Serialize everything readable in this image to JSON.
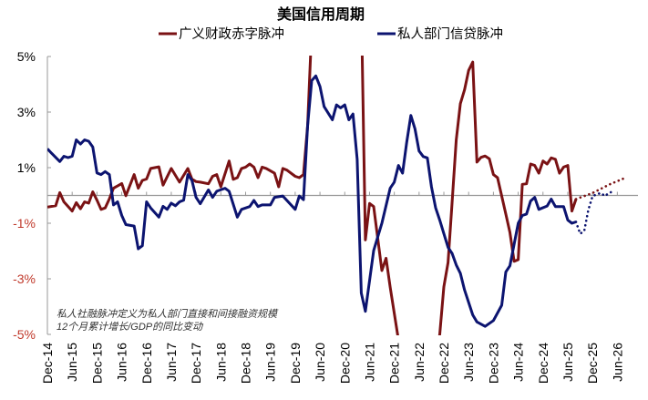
{
  "chart_data": {
    "type": "line",
    "title": "美国信用周期",
    "legend": {
      "placement": "top-center"
    },
    "xlabel": "",
    "ylabel": "",
    "xlim": [
      "2014-12",
      "2026-11"
    ],
    "ylim": [
      -5,
      5
    ],
    "y_ticks": [
      5,
      3,
      1,
      -1,
      -3,
      -5
    ],
    "y_tick_labels": [
      "5%",
      "3%",
      "1%",
      "-1%",
      "-3%",
      "-5%"
    ],
    "y_tick_colors": {
      "positive": "#000000",
      "negative": "#c0392b"
    },
    "x_tick_labels": [
      "Dec-14",
      "Jun-15",
      "Dec-15",
      "Jun-16",
      "Dec-16",
      "Jun-17",
      "Dec-17",
      "Jun-18",
      "Dec-18",
      "Jun-19",
      "Dec-19",
      "Jun-20",
      "Dec-20",
      "Jun-21",
      "Dec-21",
      "Jun-22",
      "Dec-22",
      "Jun-23",
      "Dec-23",
      "Jun-24",
      "Dec-24",
      "Jun-25",
      "Dec-25",
      "Jun-26"
    ],
    "x_ticks": [
      "2014-12",
      "2015-06",
      "2015-12",
      "2016-06",
      "2016-12",
      "2017-06",
      "2017-12",
      "2018-06",
      "2018-12",
      "2019-06",
      "2019-12",
      "2020-06",
      "2020-12",
      "2021-06",
      "2021-12",
      "2022-06",
      "2022-12",
      "2023-06",
      "2023-12",
      "2024-06",
      "2024-12",
      "2025-06",
      "2025-12",
      "2026-06"
    ],
    "grid": false,
    "zero_line": true,
    "annotation": [
      "私人社融脉冲定义为私人部门直接和间接融资规模",
      "12个月累计增长/GDP的同比变动"
    ],
    "series": [
      {
        "name": "广义财政赤字脉冲",
        "color": "#7a1214",
        "points": [
          [
            "2014-12",
            -0.42
          ],
          [
            "2015-02",
            -0.37
          ],
          [
            "2015-03",
            0.1
          ],
          [
            "2015-04",
            -0.23
          ],
          [
            "2015-06",
            -0.56
          ],
          [
            "2015-07",
            -0.26
          ],
          [
            "2015-08",
            -0.48
          ],
          [
            "2015-09",
            -0.23
          ],
          [
            "2015-10",
            -0.28
          ],
          [
            "2015-11",
            0.13
          ],
          [
            "2015-12",
            -0.17
          ],
          [
            "2016-01",
            -0.5
          ],
          [
            "2016-02",
            -0.45
          ],
          [
            "2016-03",
            -0.12
          ],
          [
            "2016-04",
            0.26
          ],
          [
            "2016-06",
            0.43
          ],
          [
            "2016-07",
            -0.01
          ],
          [
            "2016-09",
            0.75
          ],
          [
            "2016-10",
            0.26
          ],
          [
            "2016-11",
            0.54
          ],
          [
            "2016-12",
            0.59
          ],
          [
            "2017-01",
            0.97
          ],
          [
            "2017-03",
            1.03
          ],
          [
            "2017-04",
            0.37
          ],
          [
            "2017-06",
            0.97
          ],
          [
            "2017-08",
            0.48
          ],
          [
            "2017-10",
            0.97
          ],
          [
            "2017-11",
            0.59
          ],
          [
            "2017-12",
            0.5
          ],
          [
            "2018-01",
            0.48
          ],
          [
            "2018-03",
            0.42
          ],
          [
            "2018-04",
            0.69
          ],
          [
            "2018-05",
            0.75
          ],
          [
            "2018-06",
            0.31
          ],
          [
            "2018-08",
            1.24
          ],
          [
            "2018-09",
            0.58
          ],
          [
            "2018-10",
            0.64
          ],
          [
            "2018-11",
            0.97
          ],
          [
            "2018-12",
            1.02
          ],
          [
            "2019-01",
            1.13
          ],
          [
            "2019-02",
            1.02
          ],
          [
            "2019-03",
            0.64
          ],
          [
            "2019-04",
            1.02
          ],
          [
            "2019-05",
            0.97
          ],
          [
            "2019-07",
            0.8
          ],
          [
            "2019-08",
            0.31
          ],
          [
            "2019-09",
            0.97
          ],
          [
            "2019-10",
            0.91
          ],
          [
            "2019-12",
            0.69
          ],
          [
            "2020-01",
            0.64
          ],
          [
            "2020-02",
            0.75
          ],
          [
            "2020-03",
            2.5
          ],
          [
            "2020-04",
            6.0
          ],
          [
            "2021-03",
            6.5
          ],
          [
            "2021-04",
            7.0
          ],
          [
            "2021-05",
            -1.6
          ],
          [
            "2021-06",
            -0.29
          ],
          [
            "2021-07",
            -0.4
          ],
          [
            "2021-09",
            -2.7
          ],
          [
            "2021-10",
            -2.26
          ],
          [
            "2021-11",
            -3.3
          ],
          [
            "2022-01",
            -5.2
          ],
          [
            "2022-02",
            -6.5
          ],
          [
            "2022-09",
            -6.5
          ],
          [
            "2022-11",
            -5.0
          ],
          [
            "2022-12",
            -3.29
          ],
          [
            "2023-01",
            -2.42
          ],
          [
            "2023-02",
            -0.23
          ],
          [
            "2023-03",
            2.0
          ],
          [
            "2023-04",
            3.3
          ],
          [
            "2023-05",
            3.8
          ],
          [
            "2023-06",
            4.5
          ],
          [
            "2023-07",
            4.8
          ],
          [
            "2023-08",
            1.2
          ],
          [
            "2023-09",
            1.37
          ],
          [
            "2023-10",
            1.42
          ],
          [
            "2023-11",
            1.32
          ],
          [
            "2023-12",
            0.75
          ],
          [
            "2024-01",
            0.64
          ],
          [
            "2024-03",
            -0.67
          ],
          [
            "2024-04",
            -1.33
          ],
          [
            "2024-05",
            -2.37
          ],
          [
            "2024-06",
            -2.31
          ],
          [
            "2024-07",
            0.4
          ],
          [
            "2024-08",
            0.42
          ],
          [
            "2024-09",
            1.13
          ],
          [
            "2024-10",
            1.08
          ],
          [
            "2024-11",
            0.8
          ],
          [
            "2024-12",
            1.24
          ],
          [
            "2025-01",
            1.13
          ],
          [
            "2025-02",
            1.35
          ],
          [
            "2025-03",
            1.3
          ],
          [
            "2025-04",
            0.8
          ],
          [
            "2025-05",
            1.02
          ],
          [
            "2025-06",
            1.08
          ],
          [
            "2025-07",
            -0.56
          ],
          [
            "2025-08",
            -0.13
          ]
        ],
        "forecast": [
          [
            "2025-08",
            -0.13
          ],
          [
            "2025-12",
            0.09
          ],
          [
            "2026-04",
            0.39
          ],
          [
            "2026-08",
            0.64
          ]
        ]
      },
      {
        "name": "私人部门信贷脉冲",
        "color": "#0c1470",
        "points": [
          [
            "2014-12",
            1.68
          ],
          [
            "2015-01",
            1.52
          ],
          [
            "2015-03",
            1.22
          ],
          [
            "2015-04",
            1.41
          ],
          [
            "2015-05",
            1.36
          ],
          [
            "2015-06",
            1.41
          ],
          [
            "2015-07",
            2.0
          ],
          [
            "2015-08",
            1.85
          ],
          [
            "2015-09",
            2.0
          ],
          [
            "2015-10",
            1.95
          ],
          [
            "2015-11",
            1.74
          ],
          [
            "2015-12",
            0.81
          ],
          [
            "2016-01",
            0.75
          ],
          [
            "2016-02",
            0.86
          ],
          [
            "2016-03",
            0.75
          ],
          [
            "2016-04",
            -0.34
          ],
          [
            "2016-05",
            -0.23
          ],
          [
            "2016-06",
            -0.72
          ],
          [
            "2016-07",
            -1.05
          ],
          [
            "2016-09",
            -1.1
          ],
          [
            "2016-10",
            -1.92
          ],
          [
            "2016-11",
            -1.81
          ],
          [
            "2016-12",
            -0.23
          ],
          [
            "2017-01",
            -0.45
          ],
          [
            "2017-03",
            -0.78
          ],
          [
            "2017-04",
            -0.39
          ],
          [
            "2017-05",
            -0.5
          ],
          [
            "2017-06",
            -0.28
          ],
          [
            "2017-07",
            -0.37
          ],
          [
            "2017-08",
            -0.23
          ],
          [
            "2017-09",
            -0.17
          ],
          [
            "2017-10",
            0.75
          ],
          [
            "2017-11",
            0.54
          ],
          [
            "2017-12",
            -0.07
          ],
          [
            "2018-01",
            -0.3
          ],
          [
            "2018-03",
            0.2
          ],
          [
            "2018-04",
            -0.07
          ],
          [
            "2018-05",
            0.15
          ],
          [
            "2018-07",
            0.26
          ],
          [
            "2018-08",
            0.15
          ],
          [
            "2018-10",
            -0.78
          ],
          [
            "2018-11",
            -0.5
          ],
          [
            "2019-01",
            -0.4
          ],
          [
            "2019-02",
            -0.18
          ],
          [
            "2019-03",
            -0.4
          ],
          [
            "2019-04",
            -0.34
          ],
          [
            "2019-06",
            -0.34
          ],
          [
            "2019-07",
            -0.07
          ],
          [
            "2019-09",
            -0.02
          ],
          [
            "2019-12",
            -0.5
          ],
          [
            "2020-01",
            -0.02
          ],
          [
            "2020-02",
            -0.15
          ],
          [
            "2020-03",
            2.5
          ],
          [
            "2020-04",
            4.13
          ],
          [
            "2020-05",
            4.3
          ],
          [
            "2020-06",
            3.92
          ],
          [
            "2020-07",
            3.2
          ],
          [
            "2020-09",
            2.72
          ],
          [
            "2020-10",
            3.26
          ],
          [
            "2020-11",
            3.15
          ],
          [
            "2020-12",
            3.26
          ],
          [
            "2021-01",
            2.72
          ],
          [
            "2021-02",
            2.93
          ],
          [
            "2021-03",
            1.3
          ],
          [
            "2021-04",
            -3.51
          ],
          [
            "2021-05",
            -4.17
          ],
          [
            "2021-07",
            -1.98
          ],
          [
            "2021-09",
            -1.0
          ],
          [
            "2021-11",
            0.26
          ],
          [
            "2021-12",
            0.48
          ],
          [
            "2022-01",
            1.08
          ],
          [
            "2022-02",
            0.8
          ],
          [
            "2022-03",
            1.9
          ],
          [
            "2022-04",
            2.88
          ],
          [
            "2022-05",
            2.4
          ],
          [
            "2022-06",
            1.6
          ],
          [
            "2022-07",
            1.4
          ],
          [
            "2022-08",
            1.35
          ],
          [
            "2022-09",
            0.31
          ],
          [
            "2022-10",
            -0.45
          ],
          [
            "2022-11",
            -0.89
          ],
          [
            "2023-01",
            -1.87
          ],
          [
            "2023-02",
            -2.09
          ],
          [
            "2023-03",
            -2.5
          ],
          [
            "2023-04",
            -2.8
          ],
          [
            "2023-05",
            -3.4
          ],
          [
            "2023-07",
            -4.3
          ],
          [
            "2023-08",
            -4.55
          ],
          [
            "2023-10",
            -4.71
          ],
          [
            "2023-12",
            -4.5
          ],
          [
            "2024-02",
            -3.95
          ],
          [
            "2024-03",
            -2.75
          ],
          [
            "2024-04",
            -2.53
          ],
          [
            "2024-06",
            -1.0
          ],
          [
            "2024-07",
            -0.72
          ],
          [
            "2024-08",
            -0.67
          ],
          [
            "2024-09",
            -0.2
          ],
          [
            "2024-10",
            -0.07
          ],
          [
            "2024-11",
            -0.5
          ],
          [
            "2025-01",
            -0.38
          ],
          [
            "2025-02",
            -0.13
          ],
          [
            "2025-03",
            -0.4
          ],
          [
            "2025-05",
            -0.4
          ],
          [
            "2025-06",
            -0.89
          ],
          [
            "2025-07",
            -1.0
          ],
          [
            "2025-08",
            -0.95
          ]
        ],
        "forecast": [
          [
            "2025-08",
            -0.95
          ],
          [
            "2025-09",
            -1.38
          ],
          [
            "2025-10",
            -1.27
          ],
          [
            "2025-11",
            -0.51
          ],
          [
            "2025-12",
            -0.02
          ],
          [
            "2026-02",
            0.09
          ],
          [
            "2026-03",
            -0.02
          ],
          [
            "2026-04",
            0.09
          ],
          [
            "2026-05",
            0.15
          ]
        ]
      }
    ]
  }
}
